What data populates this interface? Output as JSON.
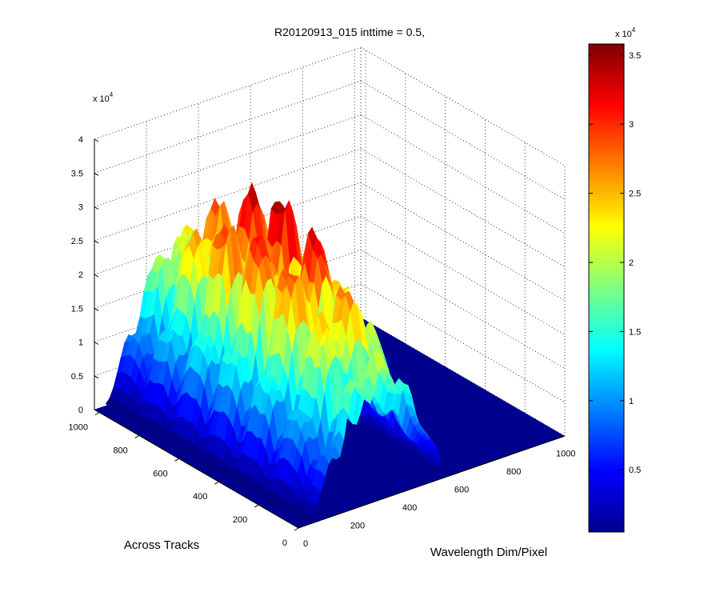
{
  "chart_data": {
    "type": "surface",
    "title": "R20120913_015 inttime = 0.5,",
    "xlabel": "Wavelength Dim/Pixel",
    "ylabel": "Across Tracks",
    "zlabel": "",
    "z_multiplier": "x 10",
    "z_exponent": "4",
    "xlim": [
      0,
      1024
    ],
    "ylim": [
      0,
      1024
    ],
    "zlim": [
      0,
      40000
    ],
    "x_ticks": [
      "0",
      "200",
      "400",
      "600",
      "800",
      "1000"
    ],
    "y_ticks": [
      "0",
      "200",
      "400",
      "600",
      "800",
      "1000"
    ],
    "z_ticks": [
      "0",
      "0.5",
      "1",
      "1.5",
      "2",
      "2.5",
      "3",
      "3.5",
      "4"
    ],
    "grid": true,
    "colormap": "jet",
    "colorbar": {
      "ticks": [
        "0.5",
        "1",
        "1.5",
        "2",
        "2.5",
        "3",
        "3.5"
      ],
      "multiplier": "x 10",
      "exponent": "4",
      "range": [
        500,
        35800
      ]
    },
    "surface_summary": {
      "x_extent": [
        0,
        600
      ],
      "y_extent": [
        0,
        1024
      ],
      "peak_value": 33000,
      "peak_location": "x ≈ 300–400, y ≈ 200–400",
      "zero_region": "x > 600"
    }
  }
}
